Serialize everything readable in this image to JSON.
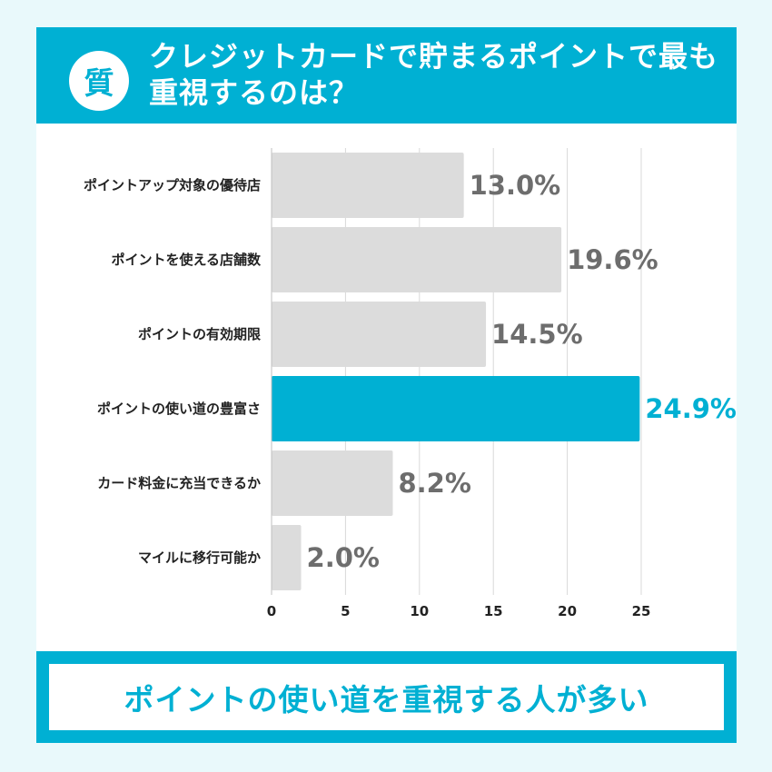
{
  "header": {
    "badge": "質",
    "title": "クレジットカードで貯まるポイントで最も重視するのは？"
  },
  "colors": {
    "accent": "#00b0d3",
    "bar_default": "#dcdcdc",
    "value_default": "#6d6d6d"
  },
  "chart_data": {
    "type": "bar",
    "orientation": "horizontal",
    "categories": [
      "ポイントアップ対象の優待店",
      "ポイントを使える店舗数",
      "ポイントの有効期限",
      "ポイントの使い道の豊富さ",
      "カード料金に充当できるか",
      "マイルに移行可能か"
    ],
    "values": [
      13.0,
      19.6,
      14.5,
      24.9,
      8.2,
      2.0
    ],
    "value_labels": [
      "13.0%",
      "19.6%",
      "14.5%",
      "24.9%",
      "8.2%",
      "2.0%"
    ],
    "highlight_index": 3,
    "xlim": [
      0,
      25
    ],
    "xticks": [
      0,
      5,
      10,
      15,
      20,
      25
    ],
    "grid": true
  },
  "footer": {
    "text": "ポイントの使い道を重視する人が多い"
  }
}
